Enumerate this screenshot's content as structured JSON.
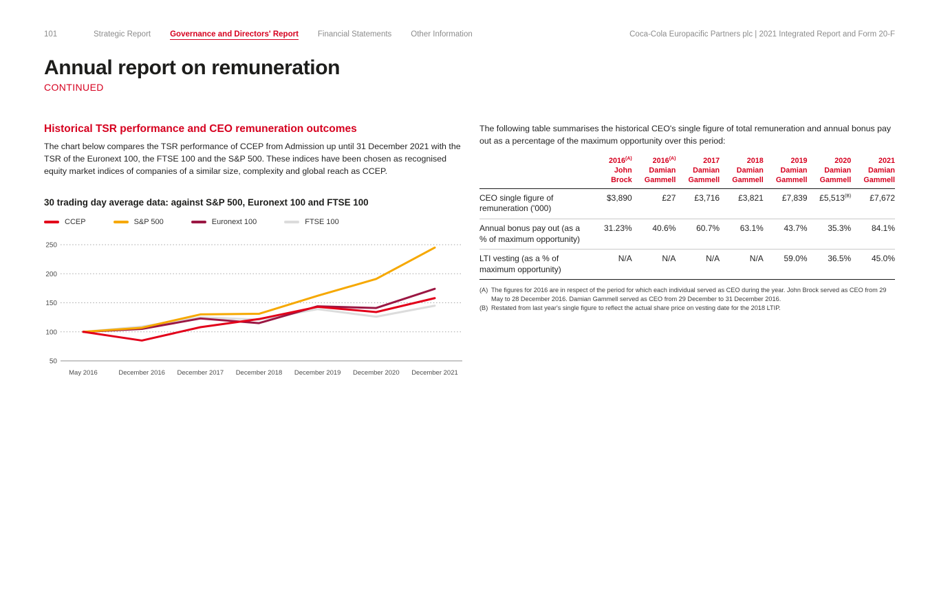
{
  "page": {
    "number": "101",
    "brand": "Coca-Cola Europacific Partners plc | 2021 Integrated Report and Form 20-F",
    "title": "Annual report on remuneration",
    "subtitle": "CONTINUED"
  },
  "nav": {
    "items": [
      {
        "label": "Strategic Report",
        "active": false
      },
      {
        "label": "Governance and Directors' Report",
        "active": true
      },
      {
        "label": "Financial Statements",
        "active": false
      },
      {
        "label": "Other Information",
        "active": false
      }
    ]
  },
  "left": {
    "heading": "Historical TSR performance and CEO remuneration outcomes",
    "paragraph": "The chart below compares the TSR performance of CCEP from Admission up until 31 December 2021 with the TSR of the Euronext 100, the FTSE 100 and the S&P 500. These indices have been chosen as recognised equity market indices of companies of a similar size, complexity and global reach as CCEP.",
    "chart_title": "30 trading day average data: against S&P 500, Euronext 100 and FTSE 100"
  },
  "right": {
    "paragraph": "The following table summarises the historical CEO's single figure of total remuneration and annual bonus pay out as a percentage of the maximum opportunity over this period:",
    "table": {
      "columns": [
        {
          "year": "2016",
          "note": "(A)",
          "person": "John Brock"
        },
        {
          "year": "2016",
          "note": "(A)",
          "person": "Damian Gammell"
        },
        {
          "year": "2017",
          "note": "",
          "person": "Damian Gammell"
        },
        {
          "year": "2018",
          "note": "",
          "person": "Damian Gammell"
        },
        {
          "year": "2019",
          "note": "",
          "person": "Damian Gammell"
        },
        {
          "year": "2020",
          "note": "",
          "person": "Damian Gammell"
        },
        {
          "year": "2021",
          "note": "",
          "person": "Damian Gammell"
        }
      ],
      "rows": [
        {
          "label": "CEO single figure of remuneration ('000)",
          "values": [
            {
              "v": "$3,890",
              "note": ""
            },
            {
              "v": "£27",
              "note": ""
            },
            {
              "v": "£3,716",
              "note": ""
            },
            {
              "v": "£3,821",
              "note": ""
            },
            {
              "v": "£7,839",
              "note": ""
            },
            {
              "v": "£5,513",
              "note": "(B)"
            },
            {
              "v": "£7,672",
              "note": ""
            }
          ]
        },
        {
          "label": "Annual bonus pay out (as a % of maximum opportunity)",
          "values": [
            {
              "v": "31.23%",
              "note": ""
            },
            {
              "v": "40.6%",
              "note": ""
            },
            {
              "v": "60.7%",
              "note": ""
            },
            {
              "v": "63.1%",
              "note": ""
            },
            {
              "v": "43.7%",
              "note": ""
            },
            {
              "v": "35.3%",
              "note": ""
            },
            {
              "v": "84.1%",
              "note": ""
            }
          ]
        },
        {
          "label": "LTI vesting (as a % of maximum opportunity)",
          "values": [
            {
              "v": "N/A",
              "note": ""
            },
            {
              "v": "N/A",
              "note": ""
            },
            {
              "v": "N/A",
              "note": ""
            },
            {
              "v": "N/A",
              "note": ""
            },
            {
              "v": "59.0%",
              "note": ""
            },
            {
              "v": "36.5%",
              "note": ""
            },
            {
              "v": "45.0%",
              "note": ""
            }
          ]
        }
      ]
    },
    "footnotes": [
      {
        "marker": "(A)",
        "text": "The figures for 2016 are in respect of the period for which each individual served as CEO during the year. John Brock served as CEO from 29 May to 28 December 2016. Damian Gammell served as CEO from 29 December to 31 December 2016."
      },
      {
        "marker": "(B)",
        "text": "Restated from last year's single figure to reflect the actual share price on vesting date for the 2018 LTIP."
      }
    ]
  },
  "chart_data": {
    "type": "line",
    "title": "30 trading day average data: against S&P 500, Euronext 100 and FTSE 100",
    "categories": [
      "May 2016",
      "December 2016",
      "December 2017",
      "December 2018",
      "December 2019",
      "December 2020",
      "December 2021"
    ],
    "series": [
      {
        "name": "CCEP",
        "color": "#e2001a",
        "values": [
          100,
          85,
          108,
          122,
          143,
          134,
          158
        ]
      },
      {
        "name": "S&P 500",
        "color": "#f6a800",
        "values": [
          100,
          107,
          130,
          131,
          162,
          191,
          245
        ]
      },
      {
        "name": "Euronext 100",
        "color": "#9b1743",
        "values": [
          100,
          105,
          123,
          115,
          144,
          141,
          174
        ]
      },
      {
        "name": "FTSE 100",
        "color": "#dcdcdc",
        "values": [
          100,
          109,
          125,
          121,
          139,
          126,
          145
        ]
      }
    ],
    "ylim": [
      50,
      250
    ],
    "yticks": [
      50,
      100,
      150,
      200,
      250
    ],
    "xlabel": "",
    "ylabel": "",
    "grid": "horizontal-dotted",
    "legend_position": "top-left",
    "baseline_value": 100
  },
  "colors": {
    "accent_red": "#d6001f",
    "text": "#242424",
    "muted": "#8c8c8c",
    "gridline": "#a6a6a6",
    "axis": "#8f8f8f"
  }
}
